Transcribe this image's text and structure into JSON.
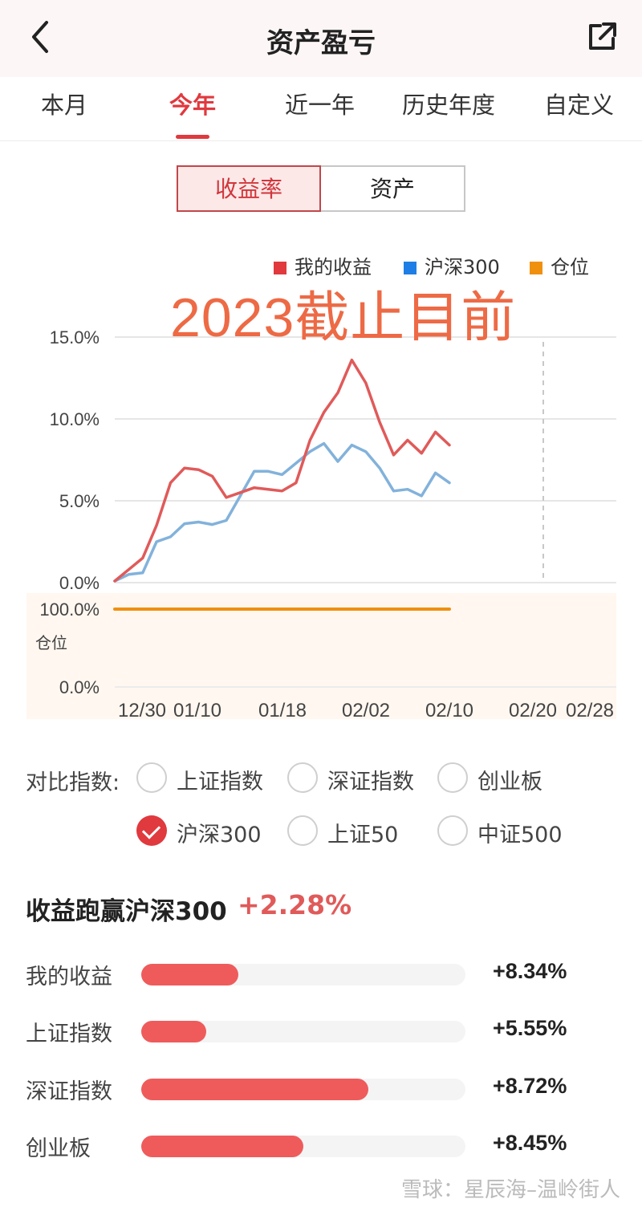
{
  "header": {
    "title": "资产盈亏"
  },
  "tabs": [
    {
      "label": "本月",
      "active": false
    },
    {
      "label": "今年",
      "active": true
    },
    {
      "label": "近一年",
      "active": false
    },
    {
      "label": "历史年度",
      "active": false
    },
    {
      "label": "自定义",
      "active": false
    }
  ],
  "segment": {
    "options": [
      "收益率",
      "资产"
    ],
    "selected": "收益率"
  },
  "caption": "2023截止目前",
  "chart_data": {
    "type": "line",
    "legend": [
      {
        "name": "我的收益",
        "color": "#e0393e"
      },
      {
        "name": "沪深300",
        "color": "#1e7ee6"
      },
      {
        "name": "仓位",
        "color": "#f0900f"
      }
    ],
    "main": {
      "yticks": [
        "15.0%",
        "10.0%",
        "5.0%",
        "0.0%"
      ],
      "ylim": [
        0,
        15
      ],
      "series": [
        {
          "name": "我的收益",
          "color": "#e05a5a",
          "values": [
            0.1,
            0.8,
            1.5,
            3.5,
            6.1,
            7.0,
            6.9,
            6.5,
            5.2,
            5.5,
            5.8,
            5.7,
            5.6,
            6.1,
            8.7,
            10.4,
            11.6,
            13.6,
            12.2,
            9.8,
            7.8,
            8.7,
            7.9,
            9.2,
            8.4
          ]
        },
        {
          "name": "沪深300",
          "color": "#82b2db",
          "values": [
            0.1,
            0.5,
            0.6,
            2.5,
            2.8,
            3.6,
            3.7,
            3.55,
            3.8,
            5.3,
            6.8,
            6.8,
            6.6,
            7.3,
            8.0,
            8.5,
            7.4,
            8.4,
            8.0,
            7.0,
            5.6,
            5.7,
            5.3,
            6.7,
            6.1
          ]
        }
      ]
    },
    "position": {
      "label": "仓位",
      "yticks": [
        "100.0%",
        "0.0%"
      ],
      "value": 100,
      "color": "#f0900f"
    },
    "xticks": [
      "12/30",
      "01/10",
      "01/18",
      "02/02",
      "02/10",
      "02/20",
      "02/28"
    ]
  },
  "compare": {
    "label": "对比指数:",
    "options": [
      {
        "label": "上证指数",
        "checked": false
      },
      {
        "label": "深证指数",
        "checked": false
      },
      {
        "label": "创业板",
        "checked": false
      },
      {
        "label": "沪深300",
        "checked": true
      },
      {
        "label": "上证50",
        "checked": false
      },
      {
        "label": "中证500",
        "checked": false
      }
    ]
  },
  "beat": {
    "title": "收益跑赢沪深300",
    "value": "+2.28%"
  },
  "bars": [
    {
      "label": "我的收益",
      "value": "+8.34%",
      "fill": 0.3
    },
    {
      "label": "上证指数",
      "value": "+5.55%",
      "fill": 0.2
    },
    {
      "label": "深证指数",
      "value": "+8.72%",
      "fill": 0.7
    },
    {
      "label": "创业板",
      "value": "+8.45%",
      "fill": 0.5
    }
  ],
  "watermark": "雪球：星辰海–温岭街人"
}
